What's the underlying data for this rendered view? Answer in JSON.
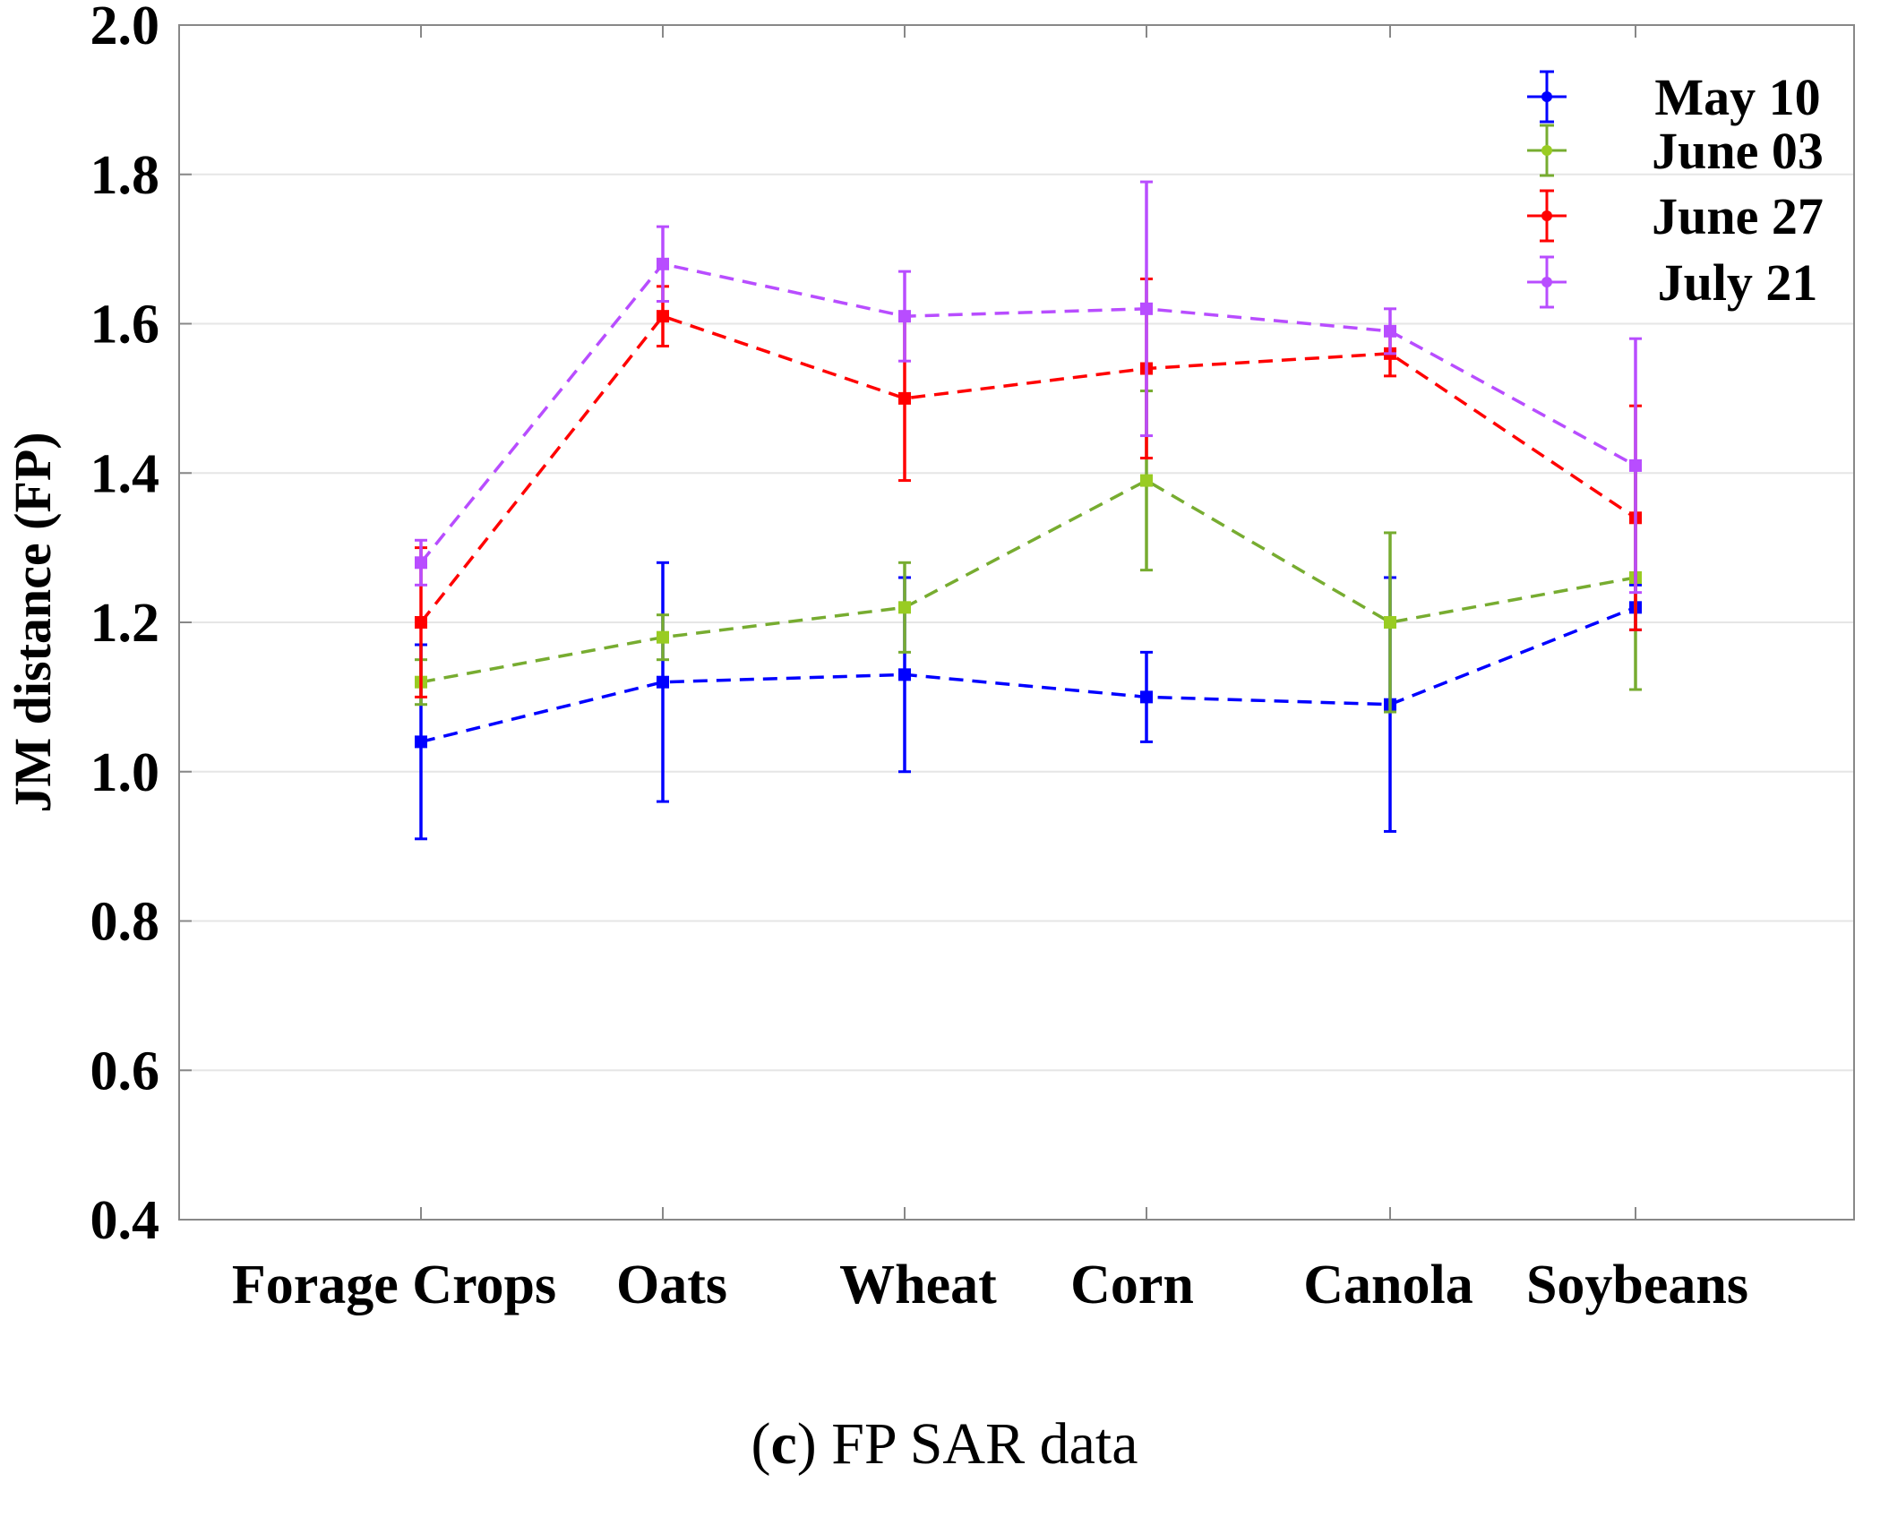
{
  "chart_data": {
    "type": "line",
    "title": "",
    "xlabel": "",
    "ylabel": "JM distance (FP)",
    "ylim": [
      0.4,
      2.0
    ],
    "yticks": [
      0.4,
      0.6,
      0.8,
      1.0,
      1.2,
      1.4,
      1.6,
      1.8,
      2.0
    ],
    "ytick_labels": [
      "0.4",
      "0.6",
      "0.8",
      "1.0",
      "1.2",
      "1.4",
      "1.6",
      "1.8",
      "2.0"
    ],
    "categories": [
      "Forage Crops",
      "Oats",
      "Wheat",
      "Corn",
      "Canola",
      "Soybeans"
    ],
    "grid": true,
    "legend_position": "top-right",
    "series": [
      {
        "name": "May 10",
        "color": "#0000ff",
        "values": [
          1.04,
          1.12,
          1.13,
          1.1,
          1.09,
          1.22
        ],
        "errors": [
          0.13,
          0.16,
          0.13,
          0.06,
          0.17,
          0.03
        ]
      },
      {
        "name": "June 03",
        "color": "#77ac30",
        "marker_color": "#99cc22",
        "values": [
          1.12,
          1.18,
          1.22,
          1.39,
          1.2,
          1.26
        ],
        "errors": [
          0.03,
          0.03,
          0.06,
          0.12,
          0.12,
          0.15
        ]
      },
      {
        "name": "June 27",
        "color": "#ff0000",
        "values": [
          1.2,
          1.61,
          1.5,
          1.54,
          1.56,
          1.34
        ],
        "errors": [
          0.1,
          0.04,
          0.11,
          0.12,
          0.03,
          0.15
        ]
      },
      {
        "name": "July 21",
        "color": "#b84dff",
        "values": [
          1.28,
          1.68,
          1.61,
          1.62,
          1.59,
          1.41
        ],
        "errors": [
          0.03,
          0.05,
          0.06,
          0.17,
          0.03,
          0.17
        ]
      }
    ]
  },
  "caption": {
    "label": "c",
    "open": "(",
    "close": ")",
    "text": "FP SAR data"
  }
}
